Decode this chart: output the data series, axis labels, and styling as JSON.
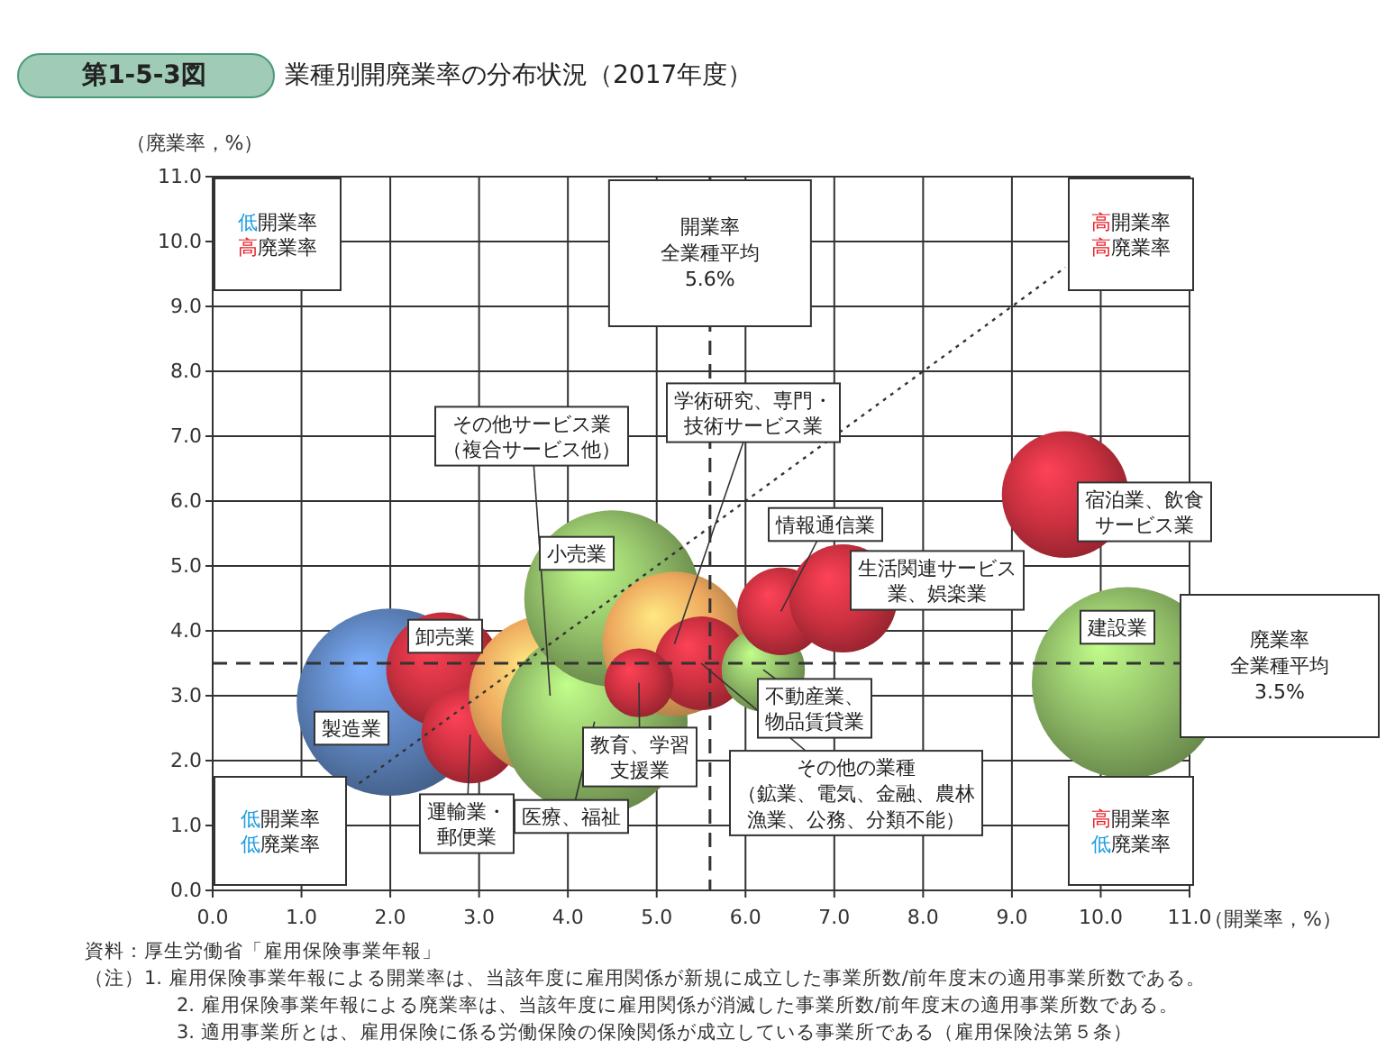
{
  "chart_data": {
    "type": "bubble",
    "title": "第1-5-3図",
    "subtitle": "業種別開廃業率の分布状況（2017年度）",
    "xlabel": "（開業率，%）",
    "ylabel": "（廃業率，%）",
    "series": [
      {
        "name": "製造業",
        "x": [
          2.0
        ],
        "values": [
          2.9
        ],
        "sizes": [
          0.96
        ],
        "color": "#5b80b8"
      },
      {
        "name": "卸売業",
        "x": [
          2.6
        ],
        "values": [
          3.4
        ],
        "sizes": [
          0.36
        ],
        "color": "#c9303f"
      },
      {
        "name": "運輸業・郵便業",
        "x": [
          2.9
        ],
        "values": [
          2.4
        ],
        "sizes": [
          0.26
        ],
        "color": "#c9303f"
      },
      {
        "name": "その他サービス業（複合サービス他）",
        "x": [
          3.8
        ],
        "values": [
          3.0
        ],
        "sizes": [
          0.72
        ],
        "color": "#eda85e"
      },
      {
        "name": "医療、福祉",
        "x": [
          4.3
        ],
        "values": [
          2.6
        ],
        "sizes": [
          0.95
        ],
        "color": "#8db865"
      },
      {
        "name": "小売業",
        "x": [
          4.5
        ],
        "values": [
          4.5
        ],
        "sizes": [
          0.85
        ],
        "color": "#8db865"
      },
      {
        "name": "学術研究、専門・技術サービス業",
        "x": [
          5.2
        ],
        "values": [
          3.8
        ],
        "sizes": [
          0.57
        ],
        "color": "#eda85e"
      },
      {
        "name": "その他の業種（鉱業、電気、金融、農林漁業、公務、分類不能）",
        "x": [
          5.5
        ],
        "values": [
          3.5
        ],
        "sizes": [
          0.24
        ],
        "color": "#c9303f"
      },
      {
        "name": "教育、学習支援業",
        "x": [
          4.8
        ],
        "values": [
          3.2
        ],
        "sizes": [
          0.13
        ],
        "color": "#c9303f"
      },
      {
        "name": "不動産業、物品賃貸業",
        "x": [
          6.2
        ],
        "values": [
          3.4
        ],
        "sizes": [
          0.19
        ],
        "color": "#8db865"
      },
      {
        "name": "情報通信業",
        "x": [
          6.4
        ],
        "values": [
          4.3
        ],
        "sizes": [
          0.21
        ],
        "color": "#c9303f"
      },
      {
        "name": "生活関連サービス業、娯楽業",
        "x": [
          7.1
        ],
        "values": [
          4.5
        ],
        "sizes": [
          0.32
        ],
        "color": "#c9303f"
      },
      {
        "name": "宿泊業、飲食サービス業",
        "x": [
          9.6
        ],
        "values": [
          6.1
        ],
        "sizes": [
          0.44
        ],
        "color": "#c9303f"
      },
      {
        "name": "建設業",
        "x": [
          10.3
        ],
        "values": [
          3.2
        ],
        "sizes": [
          1
        ],
        "color": "#8db865"
      },
      {
        "type": "line",
        "x": [
          1.65,
          9.6
        ],
        "values": [
          1.65,
          9.6
        ],
        "color": "#333333",
        "line_style": "dotted"
      }
    ],
    "xlim": [
      0,
      11
    ],
    "ylim": [
      0,
      11
    ],
    "xticks": [
      {
        "value": 0,
        "label": "0.0"
      },
      {
        "value": 1,
        "label": "1.0"
      },
      {
        "value": 2,
        "label": "2.0"
      },
      {
        "value": 3,
        "label": "3.0"
      },
      {
        "value": 4,
        "label": "4.0"
      },
      {
        "value": 5,
        "label": "5.0"
      },
      {
        "value": 6,
        "label": "6.0"
      },
      {
        "value": 7,
        "label": "7.0"
      },
      {
        "value": 8,
        "label": "8.0"
      },
      {
        "value": 9,
        "label": "9.0"
      },
      {
        "value": 10,
        "label": "10.0"
      },
      {
        "value": 11,
        "label": "11.0"
      }
    ],
    "yticks": [
      {
        "value": 0,
        "label": "0.0"
      },
      {
        "value": 1,
        "label": "1.0"
      },
      {
        "value": 2,
        "label": "2.0"
      },
      {
        "value": 3,
        "label": "3.0"
      },
      {
        "value": 4,
        "label": "4.0"
      },
      {
        "value": 5,
        "label": "5.0"
      },
      {
        "value": 6,
        "label": "6.0"
      },
      {
        "value": 7,
        "label": "7.0"
      },
      {
        "value": 8,
        "label": "8.0"
      },
      {
        "value": 9,
        "label": "9.0"
      },
      {
        "value": 10,
        "label": "10.0"
      },
      {
        "value": 11,
        "label": "11.0"
      }
    ],
    "grid": true,
    "ref_lines": [
      {
        "axis": "x",
        "value": 5.6,
        "label": "開業率全業種平均5.6%",
        "line_style": "dashed",
        "color": "#333333"
      },
      {
        "axis": "y",
        "value": 3.5,
        "label": "廃業率全業種平均3.5%",
        "line_style": "dashed",
        "color": "#333333"
      }
    ],
    "annotations": [
      "低開業率高廃業率",
      "高開業率高廃業率",
      "低開業率低廃業率",
      "高開業率低廃業率",
      "資料：厚生労働省「雇用保険事業年報」",
      "（注）1. 雇用保険事業年報による開業率は、当該年度に雇用関係が新規に成立した事業所数/前年度末の適用事業所数である。",
      "2. 雇用保険事業年報による廃業率は、当該年度に雇用関係が消滅した事業所数/前年度末の適用事業所数である。",
      "3. 適用事業所とは、雇用保険に係る労働保険の保険関係が成立している事業所である（雇用保険法第５条）"
    ]
  }
}
